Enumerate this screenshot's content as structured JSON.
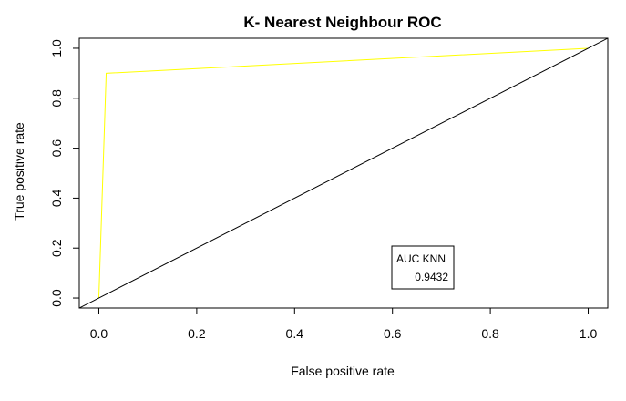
{
  "chart_data": {
    "type": "line",
    "title": "K- Nearest Neighbour ROC",
    "xlabel": "False positive rate",
    "ylabel": "True positive rate",
    "xlim": [
      -0.04,
      1.04
    ],
    "ylim": [
      -0.04,
      1.04
    ],
    "xticks": [
      "0.0",
      "0.2",
      "0.4",
      "0.6",
      "0.8",
      "1.0"
    ],
    "yticks": [
      "0.0",
      "0.2",
      "0.4",
      "0.6",
      "0.8",
      "1.0"
    ],
    "grid": false,
    "series": [
      {
        "color": "#ffff00",
        "x": [
          0.0,
          0.015,
          1.0
        ],
        "y": [
          0.0,
          0.9,
          1.0
        ]
      },
      {
        "color": "#000000",
        "x": [
          -0.04,
          1.04
        ],
        "y": [
          -0.04,
          1.04
        ]
      }
    ],
    "legend": {
      "placement": "bottom-right",
      "title": "AUC KNN",
      "value": "0.9432"
    }
  }
}
